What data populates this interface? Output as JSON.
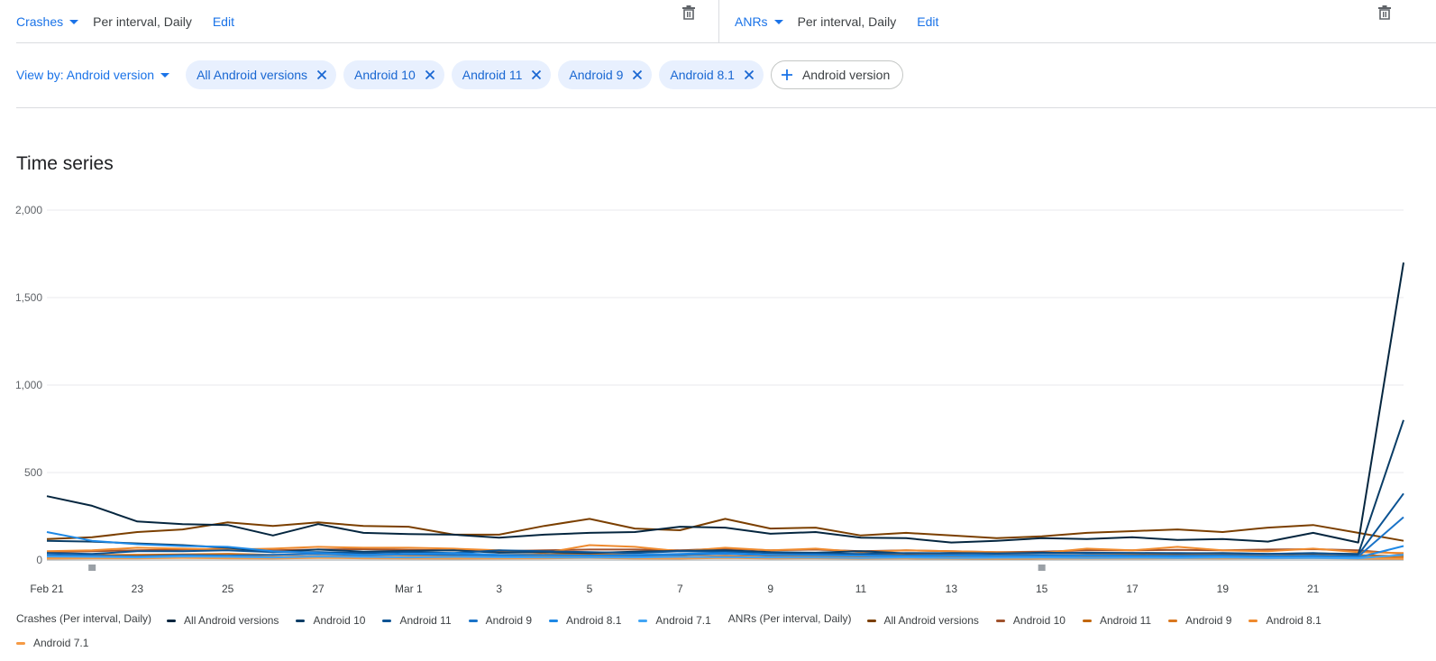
{
  "top": {
    "left": {
      "metric": "Crashes",
      "interval": "Per interval, Daily",
      "edit": "Edit"
    },
    "right": {
      "metric": "ANRs",
      "interval": "Per interval, Daily",
      "edit": "Edit"
    }
  },
  "filters": {
    "view_by": "View by: Android version",
    "chips": [
      "All Android versions",
      "Android 10",
      "Android 11",
      "Android 9",
      "Android 8.1"
    ],
    "add_label": "Android version"
  },
  "section_title": "Time series",
  "chart_data": {
    "type": "line",
    "x": [
      "Feb 21",
      "Feb 22",
      "Feb 23",
      "Feb 24",
      "Feb 25",
      "Feb 26",
      "Feb 27",
      "Feb 28",
      "Feb 29",
      "Mar 1",
      "Mar 2",
      "Mar 3",
      "Mar 4",
      "Mar 5",
      "Mar 6",
      "Mar 7",
      "Mar 8",
      "Mar 9",
      "Mar 10",
      "Mar 11",
      "Mar 12",
      "Mar 13",
      "Mar 14",
      "Mar 15",
      "Mar 16",
      "Mar 17",
      "Mar 18",
      "Mar 19",
      "Mar 20",
      "Mar 21",
      "Mar 22"
    ],
    "x_tick_labels": [
      "Feb 21",
      "23",
      "25",
      "27",
      "Mar 1",
      "3",
      "5",
      "7",
      "9",
      "11",
      "13",
      "15",
      "17",
      "19",
      "21"
    ],
    "y_ticks": [
      "2,000",
      "1,500",
      "1,000",
      "500",
      "0"
    ],
    "ylim": [
      0,
      2000
    ],
    "grid": true,
    "legend_position": "bottom",
    "legend_groups": [
      {
        "title": "Crashes (Per interval, Daily)",
        "names": [
          "All Android versions",
          "Android 10",
          "Android 11",
          "Android 9",
          "Android 8.1",
          "Android 7.1"
        ]
      },
      {
        "title": "ANRs (Per interval, Daily)",
        "names": [
          "All Android versions",
          "Android 10",
          "Android 11",
          "Android 9",
          "Android 8.1",
          "Android 7.1"
        ]
      }
    ],
    "series": [
      {
        "group": "crashes",
        "name": "All Android versions",
        "color": "#05263f",
        "values": [
          365,
          310,
          220,
          205,
          200,
          140,
          205,
          155,
          148,
          145,
          128,
          145,
          155,
          160,
          190,
          185,
          150,
          160,
          128,
          125,
          100,
          110,
          125,
          120,
          130,
          115,
          120,
          105,
          155,
          100,
          1700
        ]
      },
      {
        "group": "crashes",
        "name": "Android 10",
        "color": "#0a3d66",
        "values": [
          110,
          105,
          95,
          85,
          70,
          45,
          60,
          48,
          52,
          55,
          42,
          45,
          40,
          48,
          52,
          55,
          45,
          42,
          50,
          38,
          40,
          38,
          42,
          40,
          40,
          38,
          40,
          35,
          38,
          35,
          800
        ]
      },
      {
        "group": "crashes",
        "name": "Android 11",
        "color": "#0b5394",
        "values": [
          40,
          35,
          50,
          50,
          55,
          45,
          45,
          40,
          45,
          40,
          55,
          50,
          45,
          40,
          50,
          48,
          40,
          38,
          35,
          40,
          38,
          36,
          38,
          42,
          40,
          40,
          38,
          35,
          40,
          30,
          380
        ]
      },
      {
        "group": "crashes",
        "name": "Android 9",
        "color": "#1a73c8",
        "values": [
          30,
          25,
          20,
          28,
          25,
          30,
          35,
          28,
          32,
          30,
          25,
          28,
          26,
          24,
          30,
          35,
          28,
          30,
          26,
          25,
          28,
          24,
          26,
          28,
          25,
          24,
          26,
          22,
          25,
          20,
          245
        ]
      },
      {
        "group": "crashes",
        "name": "Android 8.1",
        "color": "#1e88e5",
        "values": [
          160,
          110,
          90,
          80,
          75,
          50,
          40,
          30,
          35,
          40,
          30,
          28,
          25,
          30,
          35,
          40,
          30,
          28,
          25,
          22,
          24,
          22,
          20,
          24,
          22,
          20,
          22,
          18,
          20,
          15,
          80
        ]
      },
      {
        "group": "crashes",
        "name": "Android 7.1",
        "color": "#42a5f5",
        "values": [
          20,
          18,
          15,
          20,
          18,
          15,
          20,
          18,
          15,
          18,
          16,
          15,
          14,
          15,
          18,
          16,
          15,
          14,
          12,
          14,
          12,
          13,
          14,
          12,
          13,
          12,
          14,
          11,
          12,
          10,
          30
        ]
      },
      {
        "group": "anrs",
        "name": "All Android versions",
        "color": "#7b3f00",
        "values": [
          120,
          130,
          160,
          175,
          215,
          195,
          215,
          195,
          190,
          145,
          145,
          195,
          235,
          180,
          170,
          235,
          180,
          185,
          140,
          155,
          140,
          125,
          135,
          155,
          165,
          175,
          160,
          185,
          200,
          155,
          110
        ]
      },
      {
        "group": "anrs",
        "name": "Android 10",
        "color": "#a0522d",
        "values": [
          45,
          50,
          55,
          60,
          65,
          55,
          60,
          62,
          58,
          55,
          50,
          55,
          60,
          60,
          55,
          65,
          55,
          60,
          50,
          55,
          50,
          45,
          48,
          55,
          55,
          58,
          55,
          60,
          62,
          55,
          35
        ]
      },
      {
        "group": "anrs",
        "name": "Android 11",
        "color": "#c2670e",
        "values": [
          25,
          28,
          30,
          32,
          35,
          30,
          35,
          32,
          30,
          28,
          30,
          32,
          35,
          30,
          28,
          35,
          30,
          32,
          28,
          30,
          28,
          25,
          26,
          30,
          30,
          32,
          30,
          32,
          35,
          28,
          22
        ]
      },
      {
        "group": "anrs",
        "name": "Android 9",
        "color": "#d9771f",
        "values": [
          15,
          18,
          20,
          22,
          20,
          18,
          22,
          20,
          18,
          16,
          18,
          20,
          22,
          18,
          17,
          22,
          18,
          20,
          16,
          18,
          16,
          15,
          16,
          18,
          18,
          20,
          18,
          20,
          22,
          17,
          12
        ]
      },
      {
        "group": "anrs",
        "name": "Android 8.1",
        "color": "#ef8a2e",
        "values": [
          50,
          55,
          70,
          65,
          60,
          65,
          75,
          70,
          70,
          65,
          55,
          40,
          85,
          75,
          50,
          70,
          55,
          65,
          45,
          55,
          50,
          45,
          40,
          65,
          55,
          75,
          55,
          50,
          65,
          45,
          40
        ]
      },
      {
        "group": "anrs",
        "name": "Android 7.1",
        "color": "#f59a45",
        "values": [
          8,
          10,
          10,
          12,
          10,
          9,
          12,
          10,
          9,
          8,
          9,
          10,
          12,
          9,
          8,
          12,
          9,
          10,
          8,
          9,
          8,
          7,
          8,
          9,
          9,
          10,
          9,
          10,
          11,
          8,
          6
        ]
      }
    ]
  }
}
